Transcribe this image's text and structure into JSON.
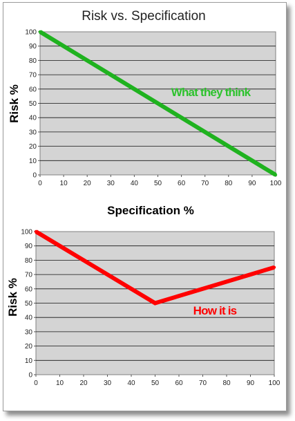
{
  "chart_data": [
    {
      "type": "line",
      "title": "Risk vs. Specification",
      "xlabel": "Specification %",
      "ylabel": "Risk %",
      "x_ticks": [
        "0",
        "10",
        "20",
        "30",
        "40",
        "50",
        "60",
        "70",
        "80",
        "90",
        "100"
      ],
      "y_ticks": [
        "0",
        "10",
        "20",
        "30",
        "40",
        "50",
        "60",
        "70",
        "80",
        "90",
        "100"
      ],
      "xlim": [
        0,
        100
      ],
      "ylim": [
        0,
        100
      ],
      "grid": true,
      "series": [
        {
          "color": "#1fb21f",
          "x": [
            0,
            100
          ],
          "y": [
            100,
            0
          ]
        }
      ],
      "annotation": {
        "text": "What they think",
        "color": "#2dc22d"
      }
    },
    {
      "type": "line",
      "title": "",
      "xlabel": "",
      "ylabel": "Risk %",
      "x_ticks": [
        "0",
        "10",
        "20",
        "30",
        "40",
        "50",
        "60",
        "70",
        "80",
        "90",
        "100"
      ],
      "y_ticks": [
        "0",
        "10",
        "20",
        "30",
        "40",
        "50",
        "60",
        "70",
        "80",
        "90",
        "100"
      ],
      "xlim": [
        0,
        100
      ],
      "ylim": [
        0,
        100
      ],
      "grid": true,
      "series": [
        {
          "color": "#ff0000",
          "x": [
            0,
            50,
            100
          ],
          "y": [
            100,
            50,
            75
          ]
        }
      ],
      "annotation": {
        "text": "How it is",
        "color": "#ff0000"
      }
    }
  ]
}
